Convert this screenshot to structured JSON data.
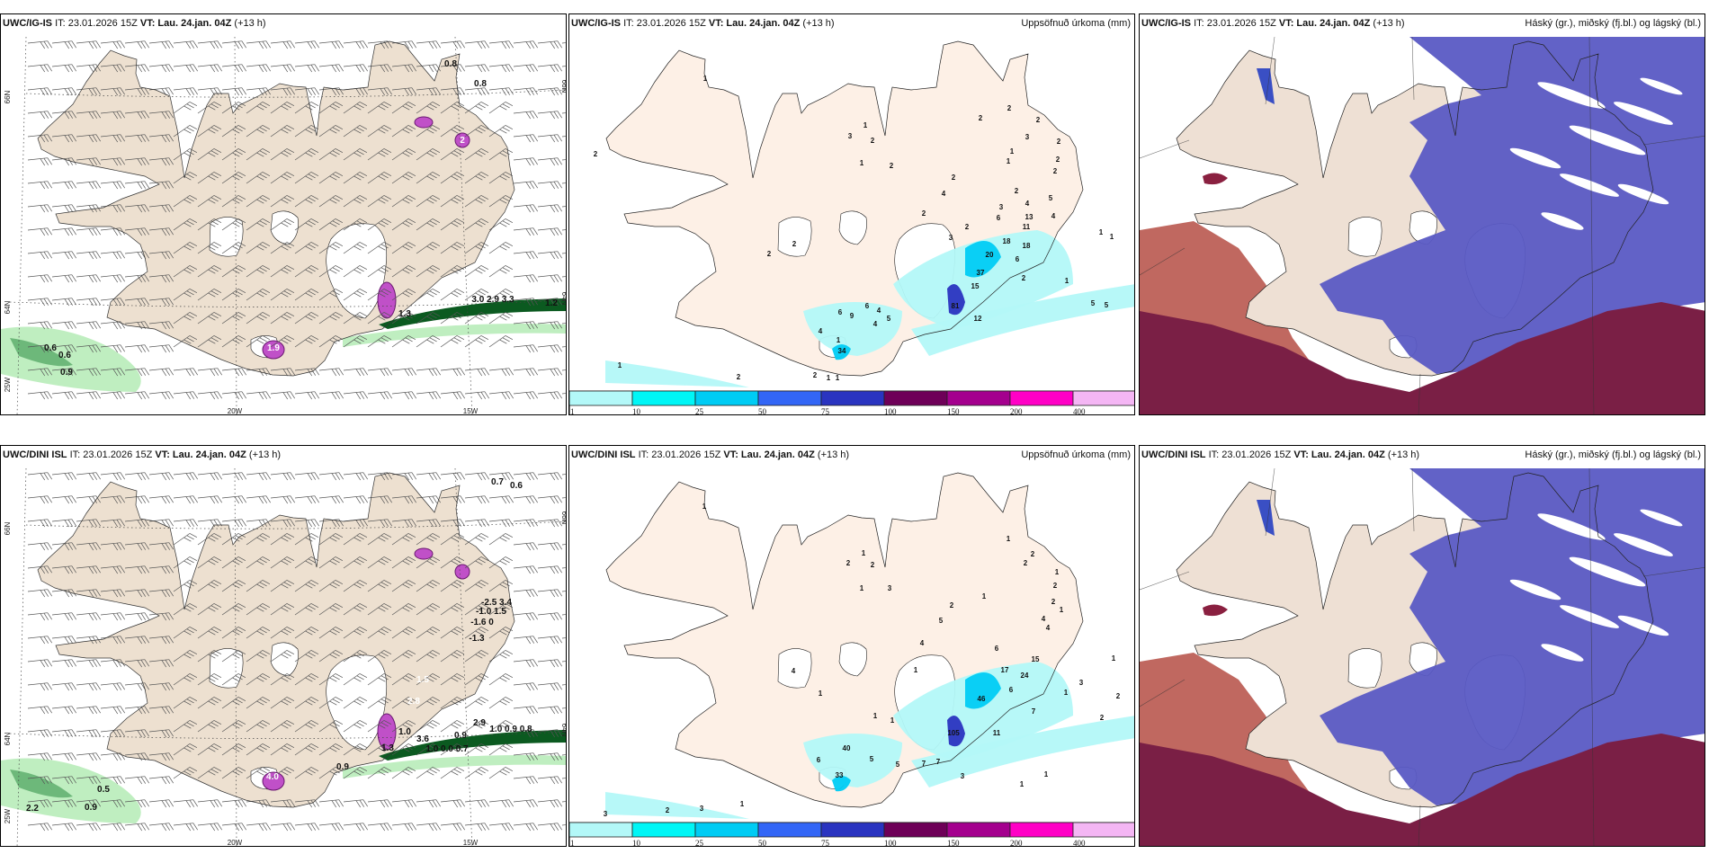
{
  "panels": {
    "top_wind": {
      "model": "UWC/IG-IS",
      "it": "IT: 23.01.2026 15Z",
      "vt": "VT: Lau. 24.jan. 04Z",
      "lead": "(+13 h)",
      "field": "",
      "labels": [
        "0.8",
        "0.8",
        "0.6",
        "0.6",
        "0.9",
        "3.0 2.9 3.3",
        "1.2",
        "1.3"
      ],
      "purple_labels": [
        "2",
        "1.9"
      ]
    },
    "top_precip": {
      "model": "UWC/IG-IS",
      "it": "IT: 23.01.2026 15Z",
      "vt": "VT: Lau. 24.jan. 04Z",
      "lead": "(+13 h)",
      "field": "Uppsöfnuð úrkoma (mm)",
      "labels": [
        "2",
        "1",
        "1",
        "3",
        "2",
        "1",
        "2",
        "2",
        "2",
        "2",
        "3",
        "2",
        "1",
        "1",
        "2",
        "2",
        "2",
        "4",
        "2",
        "4",
        "5",
        "3",
        "6",
        "13",
        "4",
        "11",
        "2",
        "2",
        "3",
        "18",
        "18",
        "20",
        "6",
        "37",
        "2",
        "15",
        "1",
        "1",
        "1",
        "81",
        "12",
        "5",
        "5",
        "2",
        "2",
        "6",
        "4",
        "6",
        "9",
        "5",
        "4",
        "4",
        "1",
        "34",
        "1",
        "2",
        "2",
        "1",
        "1"
      ]
    },
    "top_cloud": {
      "model": "UWC/IG-IS",
      "it": "IT: 23.01.2026 15Z",
      "vt": "VT: Lau. 24.jan. 04Z",
      "lead": "(+13 h)",
      "field": "Háský (gr.), miðský (fj.bl.) og lágský (bl.)"
    },
    "bottom_wind": {
      "model": "UWC/DINI ISL",
      "it": "IT: 23.01.2026 15Z",
      "vt": "VT: Lau. 24.jan. 04Z",
      "lead": "(+13 h)",
      "field": "",
      "labels": [
        "0.7",
        "0.6",
        "-2.5 3.4",
        "-1.0 1.5",
        "-1.6 0",
        "-1.3",
        "2.9",
        "1.0 0.9 0.8",
        "0.9",
        "3.6",
        "1.0",
        "1.0 0.0 0.7",
        "1.3",
        "0.9",
        "0.5",
        "0.9",
        "2.2"
      ],
      "purple_labels": [
        "4.0",
        "2.8",
        "1.5"
      ]
    },
    "bottom_precip": {
      "model": "UWC/DINI ISL",
      "it": "IT: 23.01.2026 15Z",
      "vt": "VT: Lau. 24.jan. 04Z",
      "lead": "(+13 h)",
      "field": "Uppsöfnuð úrkoma (mm)",
      "labels": [
        "1",
        "1",
        "2",
        "2",
        "1",
        "3",
        "1",
        "2",
        "2",
        "1",
        "2",
        "2",
        "1",
        "1",
        "2",
        "5",
        "4",
        "4",
        "4",
        "6",
        "15",
        "17",
        "24",
        "1",
        "6",
        "1",
        "3",
        "2",
        "1",
        "46",
        "7",
        "2",
        "1",
        "4",
        "1",
        "1",
        "105",
        "11",
        "40",
        "5",
        "6",
        "5",
        "7",
        "7",
        "33",
        "3",
        "1",
        "1",
        "3",
        "2",
        "3",
        "1"
      ]
    },
    "bottom_cloud": {
      "model": "UWC/DINI ISL",
      "it": "IT: 23.01.2026 15Z",
      "vt": "VT: Lau. 24.jan. 04Z",
      "lead": "(+13 h)",
      "field": "Háský (gr.), miðský (fj.bl.) og lágský (bl.)"
    }
  },
  "axes": {
    "lat_north": "66N",
    "lat_south": "64N",
    "lon_west": "25W",
    "lon_mid": "20W",
    "lon_east": "15W"
  },
  "colorbar": {
    "ticks": [
      "1",
      "10",
      "25",
      "50",
      "75",
      "100",
      "150",
      "200",
      "400"
    ],
    "colors": [
      "#b3f8f8",
      "#00f6f6",
      "#00ccf4",
      "#3366f6",
      "#2a34c0",
      "#6e0058",
      "#a4008e",
      "#ff00c6",
      "#f4b6f4"
    ]
  },
  "colors": {
    "land_wind": "#ede0d0",
    "land_precip": "#fdf0e6",
    "land_cloud": "#eee0d4",
    "high_cloud": "#7a1f45",
    "mid_cloud": "#5a5ac4",
    "low_cloud": "#c06860",
    "precip_green": "#0b5a20"
  }
}
